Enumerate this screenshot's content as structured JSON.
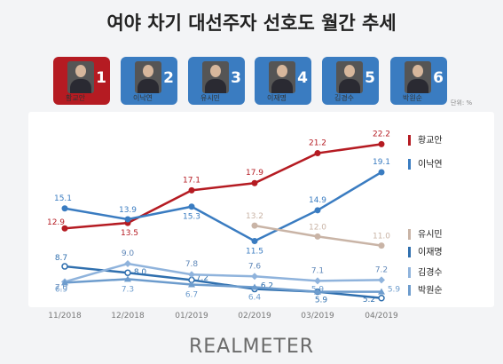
{
  "title": "여야 차기 대선주자 선호도 월간 추세",
  "unit": "단위: %",
  "logo": "REALMETER",
  "candidates": [
    {
      "name": "황교안",
      "number": "1",
      "bg": "#b51b22"
    },
    {
      "name": "이낙연",
      "number": "2",
      "bg": "#3a7cc1"
    },
    {
      "name": "유시민",
      "number": "3",
      "bg": "#3a7cc1"
    },
    {
      "name": "이재명",
      "number": "4",
      "bg": "#3a7cc1"
    },
    {
      "name": "김경수",
      "number": "5",
      "bg": "#3a7cc1"
    },
    {
      "name": "박원순",
      "number": "6",
      "bg": "#3a7cc1"
    }
  ],
  "chart_data": {
    "type": "line",
    "categories": [
      "11/2018",
      "12/2018",
      "01/2019",
      "02/2019",
      "03/2019",
      "04/2019"
    ],
    "ylabel": "단위: %",
    "series": [
      {
        "name": "황교안",
        "color": "#b51b22",
        "marker": "circle",
        "values": [
          12.9,
          13.5,
          17.1,
          17.9,
          21.2,
          22.2
        ]
      },
      {
        "name": "이낙연",
        "color": "#3a7cc1",
        "marker": "circle",
        "values": [
          15.1,
          13.9,
          15.3,
          11.5,
          14.9,
          19.1
        ]
      },
      {
        "name": "유시민",
        "color": "#c9b4a6",
        "marker": "circle",
        "values": [
          null,
          null,
          null,
          13.2,
          12.0,
          11.0
        ]
      },
      {
        "name": "이재명",
        "color": "#2f6fae",
        "marker": "circle-open",
        "values": [
          8.7,
          8.0,
          7.2,
          6.2,
          5.9,
          5.2
        ]
      },
      {
        "name": "김경수",
        "color": "#8fb3dc",
        "marker": "diamond",
        "values": [
          7.0,
          9.0,
          7.8,
          7.6,
          7.1,
          7.2
        ]
      },
      {
        "name": "박원순",
        "color": "#6d9ccd",
        "marker": "triangle",
        "values": [
          6.9,
          7.3,
          6.7,
          6.4,
          5.9,
          5.9
        ]
      }
    ]
  }
}
